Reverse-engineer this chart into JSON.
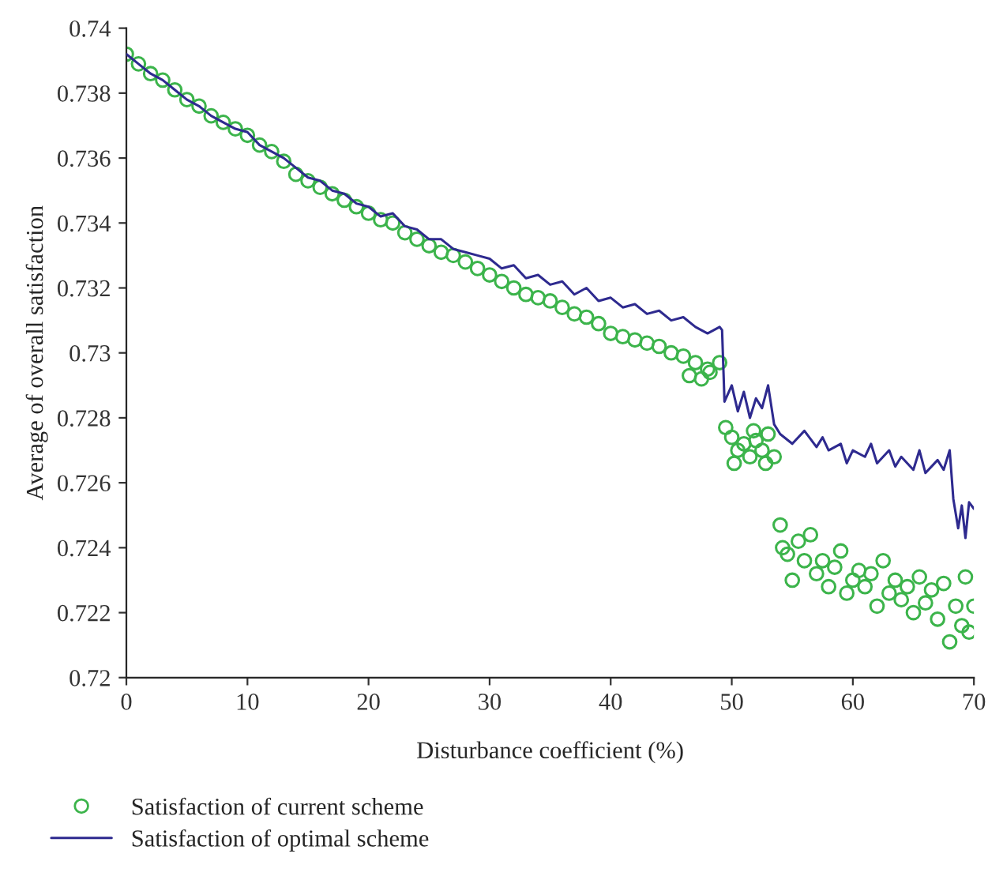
{
  "chart_data": {
    "type": "scatter",
    "xlabel": "Disturbance coefficient (%)",
    "ylabel": "Average of overall satisfaction",
    "xlim": [
      0,
      70
    ],
    "xticks": [
      0,
      10,
      20,
      30,
      40,
      50,
      60,
      70
    ],
    "ylim": [
      0.72,
      0.74
    ],
    "yticks": [
      0.72,
      0.722,
      0.724,
      0.726,
      0.728,
      0.73,
      0.732,
      0.734,
      0.736,
      0.738,
      0.74
    ],
    "grid": false,
    "legend": "bottom left",
    "series": [
      {
        "name": "Satisfaction of current scheme",
        "marker": "circle",
        "color": "#3cb44b",
        "x": [
          0,
          1,
          2,
          3,
          4,
          5,
          6,
          7,
          8,
          9,
          10,
          11,
          12,
          13,
          14,
          15,
          16,
          17,
          18,
          19,
          20,
          21,
          22,
          23,
          24,
          25,
          26,
          27,
          28,
          29,
          30,
          31,
          32,
          33,
          34,
          35,
          36,
          37,
          38,
          39,
          40,
          41,
          42,
          43,
          44,
          45,
          46,
          47,
          48,
          49,
          46.5,
          47.5,
          48.2,
          49.5,
          50,
          50.5,
          51,
          51.5,
          52,
          52.5,
          53,
          53.5,
          50.2,
          51.8,
          52.8,
          54,
          54.2,
          54.6,
          55,
          55.5,
          56,
          56.5,
          57,
          57.5,
          58,
          58.5,
          59,
          59.5,
          60,
          60.5,
          61,
          61.5,
          62,
          62.5,
          63,
          63.5,
          64,
          64.5,
          65,
          65.5,
          66,
          66.5,
          67,
          67.5,
          68,
          68.5,
          69,
          69.3,
          69.6,
          70
        ],
        "values": [
          0.7392,
          0.7389,
          0.7386,
          0.7384,
          0.7381,
          0.7378,
          0.7376,
          0.7373,
          0.7371,
          0.7369,
          0.7367,
          0.7364,
          0.7362,
          0.7359,
          0.7355,
          0.7353,
          0.7351,
          0.7349,
          0.7347,
          0.7345,
          0.7343,
          0.7341,
          0.734,
          0.7337,
          0.7335,
          0.7333,
          0.7331,
          0.733,
          0.7328,
          0.7326,
          0.7324,
          0.7322,
          0.732,
          0.7318,
          0.7317,
          0.7316,
          0.7314,
          0.7312,
          0.7311,
          0.7309,
          0.7306,
          0.7305,
          0.7304,
          0.7303,
          0.7302,
          0.73,
          0.7299,
          0.7297,
          0.7295,
          0.7297,
          0.7293,
          0.7292,
          0.7294,
          0.7277,
          0.7274,
          0.727,
          0.7272,
          0.7268,
          0.7273,
          0.727,
          0.7275,
          0.7268,
          0.7266,
          0.7276,
          0.7266,
          0.7247,
          0.724,
          0.7238,
          0.723,
          0.7242,
          0.7236,
          0.7244,
          0.7232,
          0.7236,
          0.7228,
          0.7234,
          0.7239,
          0.7226,
          0.723,
          0.7233,
          0.7228,
          0.7232,
          0.7222,
          0.7236,
          0.7226,
          0.723,
          0.7224,
          0.7228,
          0.722,
          0.7231,
          0.7223,
          0.7227,
          0.7218,
          0.7229,
          0.7211,
          0.7222,
          0.7216,
          0.7231,
          0.7214,
          0.7222
        ]
      },
      {
        "name": "Satisfaction of optimal scheme",
        "type": "line",
        "marker": "none",
        "line_style": "solid",
        "color": "#2e2a8f",
        "x": [
          0,
          1,
          2,
          3,
          4,
          5,
          6,
          7,
          8,
          9,
          10,
          11,
          12,
          13,
          14,
          15,
          16,
          17,
          18,
          19,
          20,
          21,
          22,
          23,
          24,
          25,
          26,
          27,
          28,
          29,
          30,
          31,
          32,
          33,
          34,
          35,
          36,
          37,
          38,
          39,
          40,
          41,
          42,
          43,
          44,
          45,
          46,
          47,
          48,
          49,
          49.2,
          49.4,
          50,
          50.5,
          51,
          51.5,
          52,
          52.5,
          53,
          53.5,
          54,
          55,
          56,
          57,
          57.5,
          58,
          59,
          59.5,
          60,
          61,
          61.5,
          62,
          63,
          63.5,
          64,
          65,
          65.5,
          66,
          67,
          67.5,
          68,
          68.3,
          68.7,
          69,
          69.3,
          69.6,
          70
        ],
        "values": [
          0.7392,
          0.7389,
          0.7386,
          0.7384,
          0.7381,
          0.7378,
          0.7376,
          0.7373,
          0.7371,
          0.7369,
          0.7368,
          0.7364,
          0.7362,
          0.736,
          0.7357,
          0.7354,
          0.7353,
          0.735,
          0.7349,
          0.7346,
          0.7345,
          0.7342,
          0.7343,
          0.7339,
          0.7338,
          0.7335,
          0.7335,
          0.7332,
          0.7331,
          0.733,
          0.7329,
          0.7326,
          0.7327,
          0.7323,
          0.7324,
          0.7321,
          0.7322,
          0.7318,
          0.732,
          0.7316,
          0.7317,
          0.7314,
          0.7315,
          0.7312,
          0.7313,
          0.731,
          0.7311,
          0.7308,
          0.7306,
          0.7308,
          0.7307,
          0.7285,
          0.729,
          0.7282,
          0.7288,
          0.728,
          0.7286,
          0.7283,
          0.729,
          0.7278,
          0.7275,
          0.7272,
          0.7276,
          0.7271,
          0.7274,
          0.727,
          0.7272,
          0.7266,
          0.727,
          0.7268,
          0.7272,
          0.7266,
          0.727,
          0.7265,
          0.7268,
          0.7264,
          0.727,
          0.7263,
          0.7267,
          0.7264,
          0.727,
          0.7255,
          0.7246,
          0.7253,
          0.7243,
          0.7254,
          0.7252
        ]
      }
    ]
  }
}
